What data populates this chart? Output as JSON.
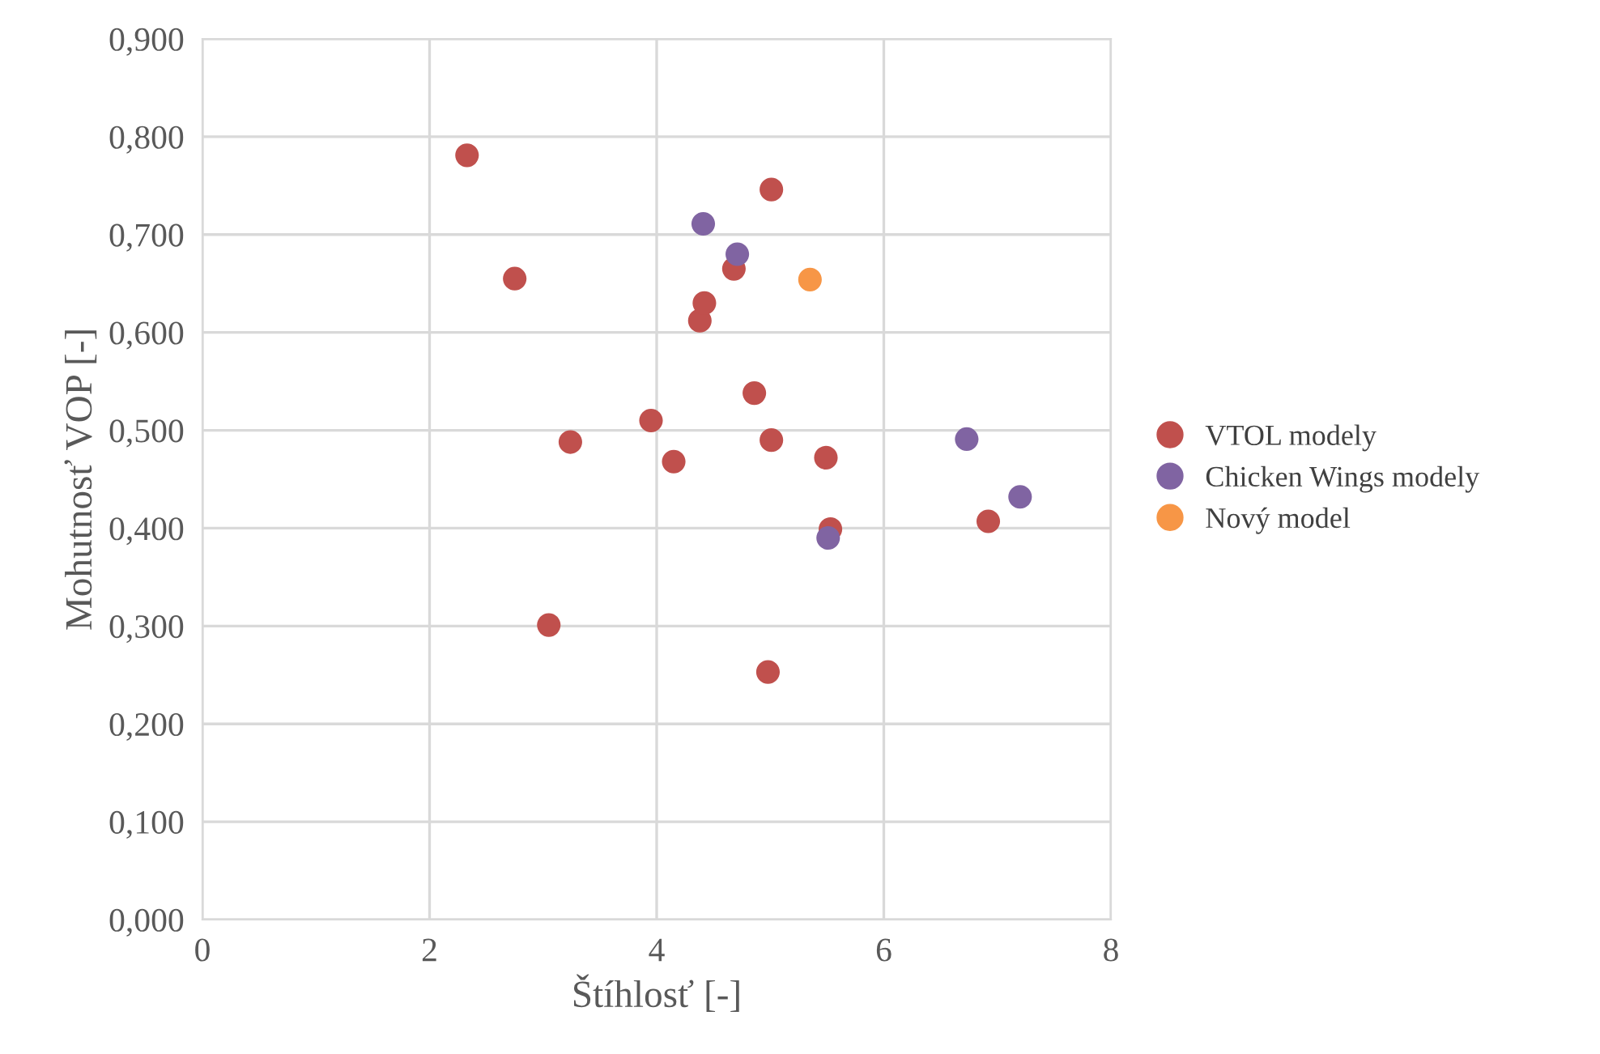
{
  "chart_data": {
    "type": "scatter",
    "xlabel": "Štíhlosť [-]",
    "ylabel": "Mohutnosť VOP [-]",
    "series": [
      {
        "name": "VTOL modely",
        "color": "#c0504d",
        "x": [
          2.33,
          2.75,
          3.05,
          3.24,
          3.95,
          4.15,
          4.38,
          4.42,
          4.68,
          4.86,
          4.98,
          5.01,
          5.01,
          5.49,
          5.53,
          6.92
        ],
        "values": [
          0.781,
          0.655,
          0.301,
          0.488,
          0.51,
          0.468,
          0.612,
          0.63,
          0.665,
          0.538,
          0.253,
          0.746,
          0.49,
          0.472,
          0.399,
          0.407
        ]
      },
      {
        "name": "Chicken Wings modely",
        "color": "#8064a2",
        "x": [
          4.41,
          4.71,
          5.51,
          6.73,
          7.2
        ],
        "values": [
          0.711,
          0.68,
          0.39,
          0.491,
          0.432
        ]
      },
      {
        "name": "Nový model",
        "color": "#f79646",
        "x": [
          5.35
        ],
        "values": [
          0.654
        ]
      }
    ],
    "xlim": [
      0,
      8
    ],
    "xticks": [
      0,
      2,
      4,
      6,
      8
    ],
    "ylim": [
      0,
      0.9
    ],
    "yticks": [
      {
        "value": 0,
        "label": "0,000"
      },
      {
        "value": 0.1,
        "label": "0,100"
      },
      {
        "value": 0.2,
        "label": "0,200"
      },
      {
        "value": 0.3,
        "label": "0,300"
      },
      {
        "value": 0.4,
        "label": "0,400"
      },
      {
        "value": 0.5,
        "label": "0,500"
      },
      {
        "value": 0.6,
        "label": "0,600"
      },
      {
        "value": 0.7,
        "label": "0,700"
      },
      {
        "value": 0.8,
        "label": "0,800"
      },
      {
        "value": 0.9,
        "label": "0,900"
      }
    ],
    "grid": true,
    "legend": "right",
    "marker": "circle"
  }
}
